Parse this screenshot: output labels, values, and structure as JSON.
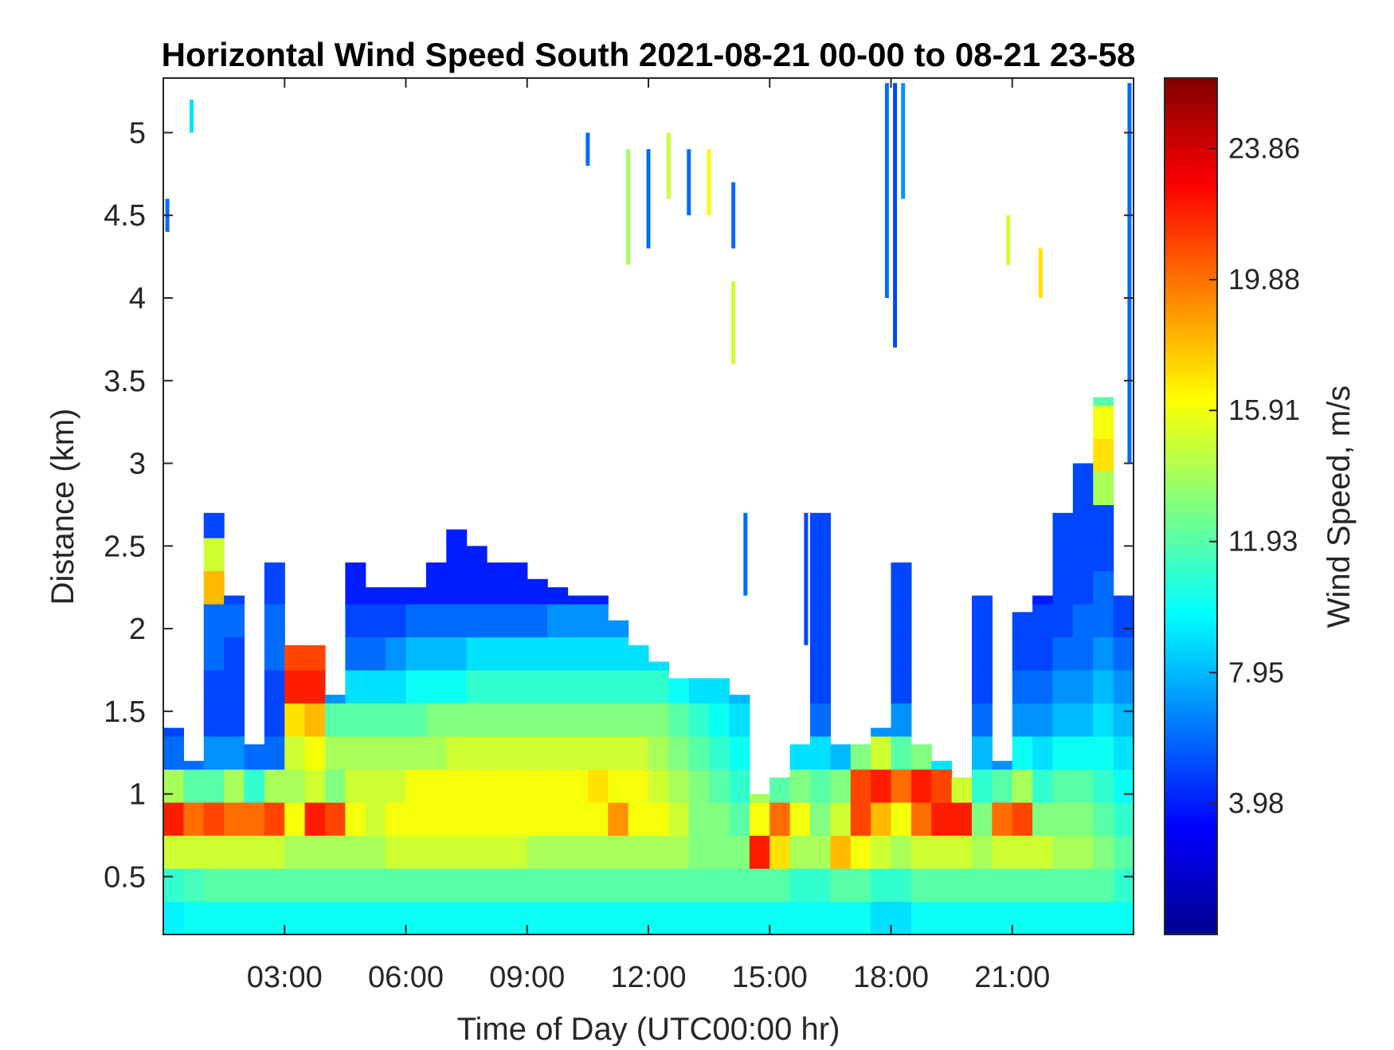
{
  "chart_data": {
    "type": "heatmap",
    "title": "Horizontal Wind Speed South 2021-08-21 00-00 to 08-21 23-58",
    "xlabel": "Time of Day (UTC00:00 hr)",
    "ylabel": "Distance (km)",
    "x_unit": "hour",
    "xlim": [
      0,
      24
    ],
    "ylim": [
      0.15,
      5.33
    ],
    "x_ticks": [
      3,
      6,
      9,
      12,
      15,
      18,
      21
    ],
    "x_tick_labels": [
      "03:00",
      "06:00",
      "09:00",
      "12:00",
      "15:00",
      "18:00",
      "21:00"
    ],
    "y_ticks": [
      0.5,
      1,
      1.5,
      2,
      2.5,
      3,
      3.5,
      4,
      4.5,
      5
    ],
    "y_tick_labels": [
      "0.5",
      "1",
      "1.5",
      "2",
      "2.5",
      "3",
      "3.5",
      "4",
      "4.5",
      "5"
    ],
    "colorbar": {
      "label": "Wind Speed, m/s",
      "colormap": "jet",
      "clim": [
        0,
        26
      ],
      "ticks": [
        3.98,
        7.95,
        11.93,
        15.91,
        19.88,
        23.86
      ],
      "tick_labels": [
        "3.98",
        "7.95",
        "11.93",
        "15.91",
        "19.88",
        "23.86"
      ]
    },
    "profiles": [
      {
        "time": 0.25,
        "top": 1.4,
        "v": [
          9.5,
          11,
          15,
          22,
          14,
          6,
          5
        ]
      },
      {
        "time": 0.75,
        "top": 1.2,
        "v": [
          10,
          11.5,
          15,
          20,
          12,
          6
        ]
      },
      {
        "time": 1.25,
        "top": 2.7,
        "v": [
          10,
          12,
          15,
          21,
          12,
          7,
          5,
          5,
          6,
          6,
          18,
          15,
          5
        ]
      },
      {
        "time": 1.75,
        "top": 2.2,
        "v": [
          10,
          12,
          15,
          20,
          14,
          7,
          5,
          5,
          5,
          6,
          5
        ]
      },
      {
        "time": 2.25,
        "top": 1.3,
        "v": [
          10,
          12,
          15,
          20,
          11,
          6
        ]
      },
      {
        "time": 2.75,
        "top": 2.4,
        "v": [
          10,
          12,
          15,
          21,
          14,
          6,
          5,
          5,
          6,
          6,
          5,
          5
        ]
      },
      {
        "time": 3.25,
        "top": 1.9,
        "v": [
          10,
          12,
          14,
          16,
          14,
          15,
          17,
          22,
          21,
          12
        ]
      },
      {
        "time": 3.75,
        "top": 1.9,
        "v": [
          10,
          12,
          14,
          22,
          15,
          16,
          18,
          22,
          21,
          11
        ]
      },
      {
        "time": 4.25,
        "top": 1.6,
        "v": [
          10,
          12,
          14,
          21,
          13,
          14,
          12,
          7
        ]
      },
      {
        "time": 4.75,
        "top": 2.4,
        "v": [
          10,
          12,
          14,
          16,
          15,
          14,
          12,
          9,
          6,
          5,
          4,
          4
        ]
      },
      {
        "time": 5.25,
        "top": 2.25,
        "v": [
          10,
          12,
          14,
          15,
          15,
          14,
          12,
          9,
          6,
          5,
          4
        ]
      },
      {
        "time": 5.75,
        "top": 2.25,
        "v": [
          10,
          12,
          15,
          16,
          15,
          14,
          12,
          9,
          7,
          5,
          4
        ]
      },
      {
        "time": 6.25,
        "top": 2.25,
        "v": [
          10,
          12,
          15,
          16,
          16,
          14,
          12,
          10,
          8,
          6,
          4
        ]
      },
      {
        "time": 6.75,
        "top": 2.4,
        "v": [
          10,
          12,
          15,
          16,
          16,
          14,
          13,
          10,
          8,
          6,
          4,
          4
        ]
      },
      {
        "time": 7.25,
        "top": 2.6,
        "v": [
          10,
          12,
          15,
          16,
          16,
          15,
          13,
          10,
          8,
          6,
          4,
          4,
          4
        ]
      },
      {
        "time": 7.75,
        "top": 2.5,
        "v": [
          10,
          12,
          15,
          16,
          16,
          15,
          13,
          11,
          9,
          6,
          4,
          4,
          4
        ]
      },
      {
        "time": 8.25,
        "top": 2.4,
        "v": [
          10,
          12,
          15,
          16,
          16,
          15,
          13,
          11,
          9,
          6,
          4,
          4
        ]
      },
      {
        "time": 8.75,
        "top": 2.4,
        "v": [
          10,
          12,
          15,
          16,
          16,
          15,
          13,
          11,
          9,
          6,
          4,
          4
        ]
      },
      {
        "time": 9.25,
        "top": 2.3,
        "v": [
          10,
          12,
          14,
          16,
          16,
          15,
          13,
          11,
          9,
          6,
          4
        ]
      },
      {
        "time": 9.75,
        "top": 2.25,
        "v": [
          10,
          12,
          14,
          16,
          16,
          15,
          13,
          11,
          9,
          7,
          4
        ]
      },
      {
        "time": 10.25,
        "top": 2.2,
        "v": [
          10,
          12,
          14,
          16,
          16,
          15,
          13,
          11,
          9,
          7,
          4
        ]
      },
      {
        "time": 10.75,
        "top": 2.2,
        "v": [
          10,
          12,
          14,
          16,
          17,
          15,
          13,
          11,
          9,
          7,
          4
        ]
      },
      {
        "time": 11.25,
        "top": 2.05,
        "v": [
          10,
          12,
          14,
          19,
          16,
          15,
          13,
          11,
          9,
          7,
          4
        ]
      },
      {
        "time": 11.75,
        "top": 1.9,
        "v": [
          10,
          12,
          14,
          16,
          16,
          15,
          13,
          11,
          9,
          5
        ]
      },
      {
        "time": 12.25,
        "top": 1.8,
        "v": [
          10,
          12,
          14,
          16,
          15,
          14,
          13,
          11,
          9,
          6
        ]
      },
      {
        "time": 12.75,
        "top": 1.7,
        "v": [
          10,
          12,
          14,
          15,
          14,
          13,
          12,
          10,
          8
        ]
      },
      {
        "time": 13.25,
        "top": 1.7,
        "v": [
          10,
          12,
          13,
          13,
          13,
          12,
          11,
          9,
          7
        ]
      },
      {
        "time": 13.75,
        "top": 1.7,
        "v": [
          10,
          12,
          13,
          13,
          12,
          11,
          10,
          9,
          7
        ]
      },
      {
        "time": 14.25,
        "top": 1.6,
        "v": [
          10,
          12,
          13,
          12,
          11,
          10,
          9,
          8
        ]
      },
      {
        "time": 14.75,
        "top": 1.0,
        "v": [
          10,
          12,
          22,
          16,
          14
        ]
      },
      {
        "time": 15.25,
        "top": 1.1,
        "v": [
          10,
          12,
          17,
          20,
          12
        ]
      },
      {
        "time": 15.75,
        "top": 1.3,
        "v": [
          10,
          11,
          14,
          16,
          13,
          9
        ]
      },
      {
        "time": 16.25,
        "top": 2.7,
        "v": [
          10,
          11,
          14,
          13,
          12,
          9,
          6,
          5,
          5,
          5,
          5,
          5,
          5
        ]
      },
      {
        "time": 16.75,
        "top": 1.3,
        "v": [
          10,
          12,
          18,
          15,
          13,
          8
        ]
      },
      {
        "time": 17.25,
        "top": 1.3,
        "v": [
          10,
          12,
          16,
          21,
          21,
          13
        ]
      },
      {
        "time": 17.75,
        "top": 1.4,
        "v": [
          9,
          11,
          15,
          18,
          22,
          15,
          7
        ]
      },
      {
        "time": 18.25,
        "top": 2.4,
        "v": [
          9,
          11,
          14,
          16,
          20,
          12,
          7,
          5,
          5,
          5,
          5,
          5
        ]
      },
      {
        "time": 18.75,
        "top": 1.3,
        "v": [
          10,
          12,
          15,
          20,
          22,
          13
        ]
      },
      {
        "time": 19.25,
        "top": 1.2,
        "v": [
          10,
          12,
          15,
          22,
          21,
          9
        ]
      },
      {
        "time": 19.75,
        "top": 1.1,
        "v": [
          10,
          12,
          15,
          22,
          15
        ]
      },
      {
        "time": 20.25,
        "top": 2.2,
        "v": [
          10,
          12,
          14,
          13,
          11,
          8,
          6,
          5,
          5,
          5,
          5
        ]
      },
      {
        "time": 20.75,
        "top": 1.2,
        "v": [
          10,
          12,
          15,
          20,
          12,
          7
        ]
      },
      {
        "time": 21.25,
        "top": 2.1,
        "v": [
          10,
          12,
          15,
          21,
          14,
          10,
          7,
          6,
          5,
          5
        ]
      },
      {
        "time": 21.75,
        "top": 2.2,
        "v": [
          10,
          12,
          15,
          13,
          11,
          9,
          7,
          6,
          5,
          5,
          4
        ]
      },
      {
        "time": 22.25,
        "top": 2.7,
        "v": [
          10,
          12,
          14,
          13,
          12,
          10,
          8,
          7,
          6,
          5,
          5,
          5,
          5
        ]
      },
      {
        "time": 22.75,
        "top": 3.0,
        "v": [
          10,
          12,
          14,
          13,
          12,
          10,
          8,
          7,
          6,
          6,
          5,
          5,
          5,
          5,
          5
        ]
      },
      {
        "time": 23.25,
        "top": 3.4,
        "v": [
          10,
          12,
          13,
          12,
          11,
          10,
          9,
          8,
          7,
          6,
          6,
          5,
          5,
          14,
          17,
          16,
          12
        ]
      },
      {
        "time": 23.75,
        "top": 2.2,
        "v": [
          10,
          11,
          12,
          11,
          10,
          9,
          8,
          7,
          6,
          5,
          5
        ]
      }
    ],
    "isolated_streaks": [
      {
        "time": 0.1,
        "from": 4.4,
        "to": 4.6,
        "v": 6
      },
      {
        "time": 0.7,
        "from": 5.0,
        "to": 5.2,
        "v": 9
      },
      {
        "time": 10.5,
        "from": 4.8,
        "to": 5.0,
        "v": 6
      },
      {
        "time": 11.5,
        "from": 4.2,
        "to": 4.9,
        "v": 14
      },
      {
        "time": 12.0,
        "from": 4.3,
        "to": 4.9,
        "v": 6
      },
      {
        "time": 12.5,
        "from": 4.6,
        "to": 5.0,
        "v": 15
      },
      {
        "time": 13.0,
        "from": 4.5,
        "to": 4.9,
        "v": 6
      },
      {
        "time": 13.5,
        "from": 4.5,
        "to": 4.9,
        "v": 16
      },
      {
        "time": 14.1,
        "from": 3.6,
        "to": 4.1,
        "v": 15
      },
      {
        "time": 14.1,
        "from": 4.3,
        "to": 4.7,
        "v": 6
      },
      {
        "time": 17.9,
        "from": 4.0,
        "to": 5.3,
        "v": 6
      },
      {
        "time": 18.1,
        "from": 3.7,
        "to": 5.3,
        "v": 5
      },
      {
        "time": 18.3,
        "from": 4.6,
        "to": 5.3,
        "v": 7
      },
      {
        "time": 20.9,
        "from": 4.2,
        "to": 4.5,
        "v": 15
      },
      {
        "time": 21.7,
        "from": 4.0,
        "to": 4.3,
        "v": 17
      },
      {
        "time": 14.4,
        "from": 2.2,
        "to": 2.7,
        "v": 6
      },
      {
        "time": 15.9,
        "from": 1.9,
        "to": 2.7,
        "v": 5
      },
      {
        "time": 23.9,
        "from": 3.0,
        "to": 5.3,
        "v": 6
      }
    ]
  }
}
